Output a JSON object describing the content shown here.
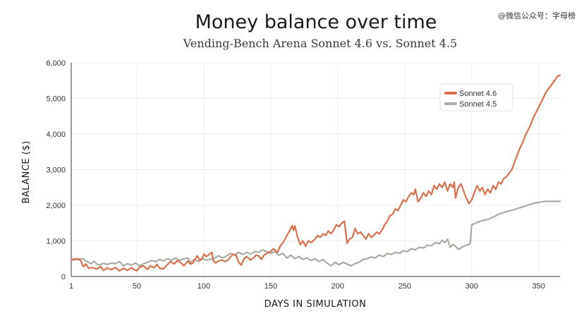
{
  "watermark": "@微信公众号：字母榜",
  "chart_data": {
    "type": "line",
    "title": "Money balance over time",
    "subtitle": "Vending-Bench Arena Sonnet 4.6 vs. Sonnet 4.5",
    "xlabel": "DAYS IN SIMULATION",
    "ylabel": "BALANCE ($)",
    "xlim": [
      1,
      366
    ],
    "ylim": [
      0,
      6000
    ],
    "x_ticks": [
      1,
      50,
      100,
      150,
      200,
      250,
      300,
      350
    ],
    "y_ticks": [
      0,
      1000,
      2000,
      3000,
      4000,
      5000,
      6000
    ],
    "x_tick_labels": [
      "1",
      "50",
      "100",
      "150",
      "200",
      "250",
      "300",
      "350"
    ],
    "y_tick_labels": [
      "0",
      "1,000",
      "2,000",
      "3,000",
      "4,000",
      "5,000",
      "6,000"
    ],
    "grid": true,
    "legend_position": "top-right",
    "series": [
      {
        "name": "Sonnet 4.6",
        "color": "#d9704e",
        "points": [
          [
            1,
            480
          ],
          [
            5,
            500
          ],
          [
            8,
            450
          ],
          [
            10,
            280
          ],
          [
            12,
            350
          ],
          [
            14,
            230
          ],
          [
            17,
            250
          ],
          [
            20,
            210
          ],
          [
            23,
            280
          ],
          [
            25,
            170
          ],
          [
            28,
            240
          ],
          [
            31,
            190
          ],
          [
            34,
            250
          ],
          [
            37,
            160
          ],
          [
            40,
            230
          ],
          [
            43,
            170
          ],
          [
            46,
            250
          ],
          [
            48,
            190
          ],
          [
            50,
            160
          ],
          [
            52,
            260
          ],
          [
            55,
            300
          ],
          [
            58,
            200
          ],
          [
            60,
            300
          ],
          [
            63,
            250
          ],
          [
            65,
            340
          ],
          [
            67,
            230
          ],
          [
            70,
            220
          ],
          [
            72,
            300
          ],
          [
            75,
            420
          ],
          [
            78,
            350
          ],
          [
            80,
            450
          ],
          [
            83,
            380
          ],
          [
            85,
            300
          ],
          [
            88,
            430
          ],
          [
            90,
            350
          ],
          [
            92,
            380
          ],
          [
            95,
            580
          ],
          [
            97,
            450
          ],
          [
            99,
            520
          ],
          [
            100,
            630
          ],
          [
            102,
            560
          ],
          [
            104,
            620
          ],
          [
            106,
            680
          ],
          [
            107,
            450
          ],
          [
            109,
            380
          ],
          [
            111,
            440
          ],
          [
            114,
            460
          ],
          [
            116,
            420
          ],
          [
            118,
            460
          ],
          [
            120,
            560
          ],
          [
            122,
            620
          ],
          [
            124,
            600
          ],
          [
            126,
            400
          ],
          [
            128,
            320
          ],
          [
            130,
            500
          ],
          [
            132,
            560
          ],
          [
            135,
            460
          ],
          [
            137,
            520
          ],
          [
            139,
            600
          ],
          [
            141,
            580
          ],
          [
            143,
            480
          ],
          [
            145,
            600
          ],
          [
            147,
            650
          ],
          [
            150,
            700
          ],
          [
            152,
            780
          ],
          [
            155,
            680
          ],
          [
            157,
            850
          ],
          [
            160,
            1000
          ],
          [
            162,
            1150
          ],
          [
            164,
            1280
          ],
          [
            166,
            1430
          ],
          [
            167,
            1300
          ],
          [
            168,
            1420
          ],
          [
            170,
            1100
          ],
          [
            172,
            900
          ],
          [
            174,
            1000
          ],
          [
            176,
            850
          ],
          [
            178,
            1000
          ],
          [
            180,
            950
          ],
          [
            183,
            1050
          ],
          [
            185,
            1150
          ],
          [
            187,
            1100
          ],
          [
            189,
            1200
          ],
          [
            191,
            1150
          ],
          [
            193,
            1280
          ],
          [
            195,
            1200
          ],
          [
            197,
            1300
          ],
          [
            199,
            1450
          ],
          [
            201,
            1400
          ],
          [
            203,
            1500
          ],
          [
            205,
            1550
          ],
          [
            206,
            1250
          ],
          [
            207,
            940
          ],
          [
            209,
            1050
          ],
          [
            211,
            1100
          ],
          [
            213,
            1350
          ],
          [
            215,
            1200
          ],
          [
            217,
            1250
          ],
          [
            219,
            1150
          ],
          [
            221,
            1050
          ],
          [
            223,
            1200
          ],
          [
            225,
            1100
          ],
          [
            227,
            1150
          ],
          [
            229,
            1250
          ],
          [
            231,
            1200
          ],
          [
            233,
            1300
          ],
          [
            235,
            1450
          ],
          [
            237,
            1550
          ],
          [
            239,
            1700
          ],
          [
            241,
            1750
          ],
          [
            243,
            1900
          ],
          [
            245,
            1850
          ],
          [
            247,
            2000
          ],
          [
            249,
            2150
          ],
          [
            251,
            2100
          ],
          [
            253,
            2250
          ],
          [
            255,
            2350
          ],
          [
            257,
            2300
          ],
          [
            258,
            2450
          ],
          [
            260,
            2100
          ],
          [
            262,
            2200
          ],
          [
            264,
            2350
          ],
          [
            266,
            2250
          ],
          [
            268,
            2400
          ],
          [
            270,
            2300
          ],
          [
            272,
            2550
          ],
          [
            274,
            2450
          ],
          [
            276,
            2600
          ],
          [
            278,
            2500
          ],
          [
            280,
            2650
          ],
          [
            282,
            2400
          ],
          [
            284,
            2600
          ],
          [
            286,
            2500
          ],
          [
            287,
            2650
          ],
          [
            288,
            2200
          ],
          [
            290,
            2500
          ],
          [
            292,
            2600
          ],
          [
            294,
            2400
          ],
          [
            296,
            2200
          ],
          [
            298,
            2050
          ],
          [
            300,
            2150
          ],
          [
            302,
            2350
          ],
          [
            304,
            2550
          ],
          [
            306,
            2400
          ],
          [
            308,
            2500
          ],
          [
            310,
            2300
          ],
          [
            312,
            2450
          ],
          [
            314,
            2350
          ],
          [
            316,
            2550
          ],
          [
            318,
            2450
          ],
          [
            320,
            2650
          ],
          [
            322,
            2600
          ],
          [
            324,
            2750
          ],
          [
            326,
            2800
          ],
          [
            328,
            2900
          ],
          [
            330,
            3000
          ],
          [
            332,
            3200
          ],
          [
            334,
            3400
          ],
          [
            336,
            3600
          ],
          [
            338,
            3750
          ],
          [
            340,
            3950
          ],
          [
            342,
            4100
          ],
          [
            344,
            4250
          ],
          [
            346,
            4450
          ],
          [
            348,
            4600
          ],
          [
            350,
            4750
          ],
          [
            352,
            4900
          ],
          [
            354,
            5050
          ],
          [
            356,
            5200
          ],
          [
            358,
            5300
          ],
          [
            360,
            5400
          ],
          [
            362,
            5500
          ],
          [
            364,
            5620
          ],
          [
            366,
            5650
          ]
        ]
      },
      {
        "name": "Sonnet 4.5",
        "color": "#aaaaa3",
        "points": [
          [
            1,
            450
          ],
          [
            5,
            480
          ],
          [
            8,
            500
          ],
          [
            10,
            500
          ],
          [
            12,
            430
          ],
          [
            14,
            400
          ],
          [
            16,
            360
          ],
          [
            18,
            430
          ],
          [
            20,
            350
          ],
          [
            22,
            320
          ],
          [
            25,
            370
          ],
          [
            28,
            340
          ],
          [
            31,
            380
          ],
          [
            34,
            360
          ],
          [
            37,
            420
          ],
          [
            40,
            300
          ],
          [
            43,
            360
          ],
          [
            46,
            320
          ],
          [
            49,
            380
          ],
          [
            52,
            300
          ],
          [
            55,
            360
          ],
          [
            58,
            400
          ],
          [
            61,
            450
          ],
          [
            64,
            420
          ],
          [
            67,
            480
          ],
          [
            70,
            440
          ],
          [
            73,
            500
          ],
          [
            76,
            450
          ],
          [
            79,
            520
          ],
          [
            82,
            450
          ],
          [
            85,
            500
          ],
          [
            88,
            520
          ],
          [
            90,
            400
          ],
          [
            93,
            480
          ],
          [
            96,
            420
          ],
          [
            99,
            500
          ],
          [
            102,
            460
          ],
          [
            105,
            480
          ],
          [
            108,
            520
          ],
          [
            111,
            580
          ],
          [
            114,
            520
          ],
          [
            117,
            580
          ],
          [
            120,
            650
          ],
          [
            123,
            600
          ],
          [
            126,
            680
          ],
          [
            129,
            620
          ],
          [
            132,
            680
          ],
          [
            135,
            630
          ],
          [
            138,
            700
          ],
          [
            141,
            680
          ],
          [
            144,
            750
          ],
          [
            147,
            700
          ],
          [
            150,
            650
          ],
          [
            153,
            700
          ],
          [
            156,
            600
          ],
          [
            159,
            650
          ],
          [
            162,
            520
          ],
          [
            165,
            600
          ],
          [
            168,
            500
          ],
          [
            171,
            560
          ],
          [
            174,
            480
          ],
          [
            177,
            520
          ],
          [
            180,
            450
          ],
          [
            183,
            500
          ],
          [
            186,
            420
          ],
          [
            189,
            480
          ],
          [
            192,
            380
          ],
          [
            195,
            300
          ],
          [
            198,
            400
          ],
          [
            201,
            330
          ],
          [
            204,
            400
          ],
          [
            207,
            350
          ],
          [
            210,
            300
          ],
          [
            213,
            360
          ],
          [
            216,
            400
          ],
          [
            219,
            480
          ],
          [
            222,
            500
          ],
          [
            225,
            550
          ],
          [
            228,
            520
          ],
          [
            231,
            600
          ],
          [
            234,
            560
          ],
          [
            237,
            650
          ],
          [
            240,
            620
          ],
          [
            243,
            680
          ],
          [
            246,
            650
          ],
          [
            249,
            720
          ],
          [
            252,
            700
          ],
          [
            255,
            780
          ],
          [
            258,
            750
          ],
          [
            261,
            820
          ],
          [
            264,
            800
          ],
          [
            267,
            880
          ],
          [
            270,
            860
          ],
          [
            273,
            950
          ],
          [
            276,
            920
          ],
          [
            278,
            1020
          ],
          [
            280,
            950
          ],
          [
            282,
            1050
          ],
          [
            284,
            820
          ],
          [
            286,
            900
          ],
          [
            288,
            850
          ],
          [
            290,
            760
          ],
          [
            292,
            800
          ],
          [
            294,
            850
          ],
          [
            296,
            880
          ],
          [
            298,
            900
          ],
          [
            299,
            950
          ],
          [
            300,
            1450
          ],
          [
            303,
            1500
          ],
          [
            306,
            1550
          ],
          [
            309,
            1580
          ],
          [
            312,
            1600
          ],
          [
            315,
            1650
          ],
          [
            318,
            1700
          ],
          [
            320,
            1750
          ],
          [
            323,
            1780
          ],
          [
            326,
            1820
          ],
          [
            329,
            1850
          ],
          [
            332,
            1880
          ],
          [
            335,
            1920
          ],
          [
            338,
            1950
          ],
          [
            341,
            1990
          ],
          [
            344,
            2030
          ],
          [
            347,
            2060
          ],
          [
            350,
            2080
          ],
          [
            353,
            2100
          ],
          [
            356,
            2110
          ],
          [
            360,
            2110
          ],
          [
            366,
            2110
          ]
        ]
      }
    ]
  }
}
